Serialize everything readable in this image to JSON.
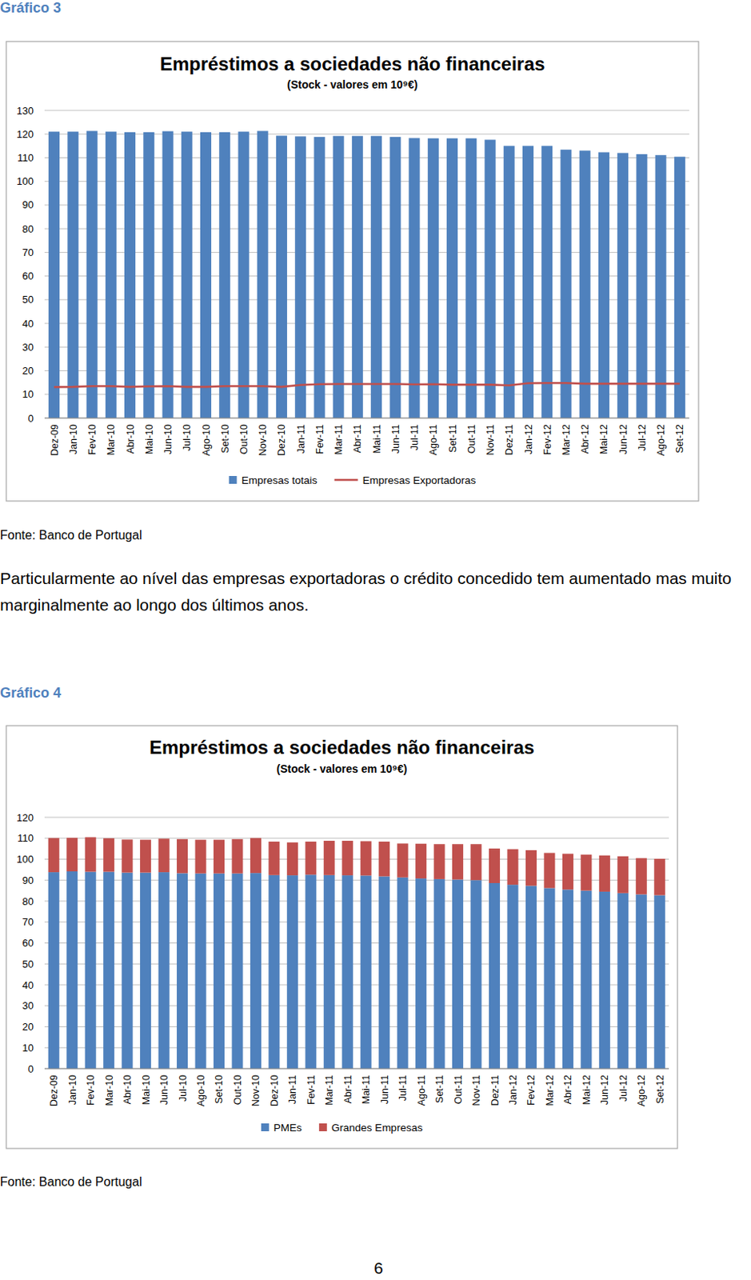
{
  "chart_data": [
    {
      "type": "bar",
      "title": "Empréstimos a sociedades não financeiras",
      "subtitle": "(Stock - valores em 10⁹€)",
      "categories": [
        "Dez-09",
        "Jan-10",
        "Fev-10",
        "Mar-10",
        "Abr-10",
        "Mai-10",
        "Jun-10",
        "Jul-10",
        "Ago-10",
        "Set-10",
        "Out-10",
        "Nov-10",
        "Dez-10",
        "Jan-11",
        "Fev-11",
        "Mar-11",
        "Abr-11",
        "Mai-11",
        "Jun-11",
        "Jul-11",
        "Ago-11",
        "Set-11",
        "Out-11",
        "Nov-11",
        "Dez-11",
        "Jan-12",
        "Fev-12",
        "Mar-12",
        "Abr-12",
        "Mai-12",
        "Jun-12",
        "Jul-12",
        "Ago-12",
        "Set-12"
      ],
      "series": [
        {
          "name": "Empresas totais",
          "type": "bar",
          "color": "#4f81bd",
          "values": [
            121,
            121,
            121.3,
            121,
            120.8,
            120.8,
            121.2,
            121,
            120.8,
            120.8,
            121,
            121.3,
            119.3,
            119,
            118.8,
            119.2,
            119.2,
            119.2,
            118.8,
            118.3,
            118.2,
            118.2,
            118.2,
            117.6,
            115,
            115,
            115,
            113.4,
            113,
            112.3,
            112,
            111.5,
            111.1,
            110.4
          ]
        },
        {
          "name": "Empresas Exportadoras",
          "type": "line",
          "color": "#c0504d",
          "values": [
            13.1,
            13.2,
            13.5,
            13.5,
            13.2,
            13.4,
            13.5,
            13.2,
            13.2,
            13.5,
            13.5,
            13.5,
            13.2,
            14,
            14.3,
            14.4,
            14.4,
            14.4,
            14.4,
            14.2,
            14.3,
            14.1,
            14.1,
            14.1,
            13.8,
            14.7,
            14.8,
            14.8,
            14.5,
            14.5,
            14.5,
            14.5,
            14.5,
            14.5
          ]
        }
      ],
      "ylim": [
        0,
        130
      ],
      "yticks": [
        0,
        10,
        20,
        30,
        40,
        50,
        60,
        70,
        80,
        90,
        100,
        110,
        120,
        130
      ],
      "grid": true,
      "legend": "bottom"
    },
    {
      "type": "bar",
      "title": "Empréstimos a sociedades não financeiras",
      "subtitle": "(Stock - valores em 10⁹€)",
      "categories": [
        "Dez-09",
        "Jan-10",
        "Fev-10",
        "Mar-10",
        "Abr-10",
        "Mai-10",
        "Jun-10",
        "Jul-10",
        "Ago-10",
        "Set-10",
        "Out-10",
        "Nov-10",
        "Dez-10",
        "Jan-11",
        "Fev-11",
        "Mar-11",
        "Abr-11",
        "Mai-11",
        "Jun-11",
        "Jul-11",
        "Ago-11",
        "Set-11",
        "Out-11",
        "Nov-11",
        "Dez-11",
        "Jan-12",
        "Fev-12",
        "Mar-12",
        "Abr-12",
        "Mai-12",
        "Jun-12",
        "Jul-12",
        "Ago-12",
        "Set-12"
      ],
      "series": [
        {
          "name": "PMEs",
          "color": "#4f81bd",
          "values": [
            93.8,
            94.2,
            94,
            94,
            93.6,
            93.6,
            93.8,
            93.3,
            93.2,
            93.2,
            93.2,
            93.4,
            92.4,
            92.3,
            92.6,
            92.4,
            92.3,
            92.2,
            91.8,
            91.3,
            90.8,
            90.5,
            90.3,
            90,
            88.6,
            87.8,
            87.3,
            86.2,
            85.5,
            85,
            84.5,
            83.8,
            83.2,
            82.8
          ]
        },
        {
          "name": "Grandes Empresas",
          "color": "#c0504d",
          "values": [
            16.3,
            16,
            16.5,
            16,
            15.8,
            15.7,
            16,
            16.3,
            16.1,
            16.1,
            16.4,
            16.7,
            16,
            15.7,
            15.8,
            16.4,
            16.5,
            16.4,
            16.6,
            16.2,
            16.6,
            16.7,
            16.9,
            17.2,
            16.5,
            17,
            17,
            16.8,
            17.1,
            17.2,
            17.3,
            17.6,
            17.3,
            17.4
          ]
        }
      ],
      "ylim": [
        0,
        120
      ],
      "yticks": [
        0,
        10,
        20,
        30,
        40,
        50,
        60,
        70,
        80,
        90,
        100,
        110,
        120
      ],
      "grid": true,
      "stacked": true,
      "legend": "bottom"
    }
  ],
  "figures": [
    {
      "label": "Gráfico 3",
      "source": "Fonte: Banco de Portugal"
    },
    {
      "label": "Gráfico 4",
      "source": "Fonte: Banco de Portugal"
    }
  ],
  "paragraph": "Particularmente ao nível das empresas exportadoras o crédito concedido tem aumentado mas muito marginalmente ao longo dos últimos anos.",
  "page_number": "6"
}
